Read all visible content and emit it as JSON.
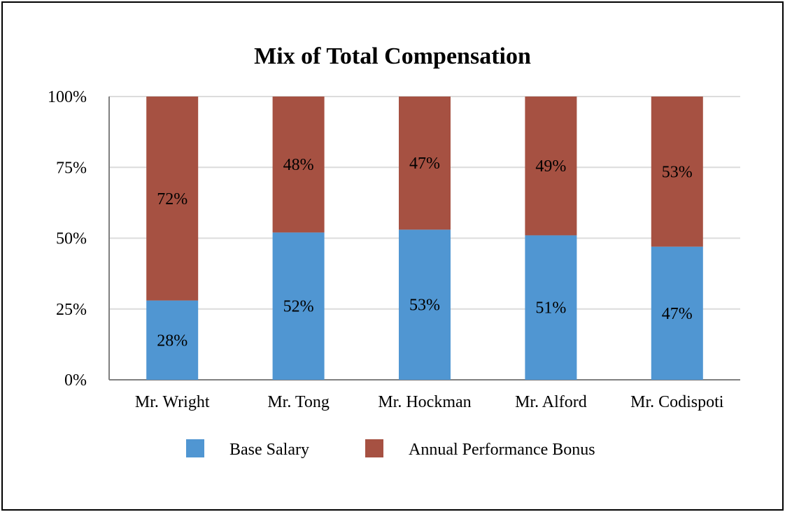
{
  "chart_data": {
    "type": "bar",
    "stacked": true,
    "percent_stacked": true,
    "title": "Mix of Total Compensation",
    "xlabel": "",
    "ylabel": "",
    "categories": [
      "Mr. Wright",
      "Mr. Tong",
      "Mr. Hockman",
      "Mr. Alford",
      "Mr. Codispoti"
    ],
    "series": [
      {
        "name": "Base Salary",
        "color": "#5096D2",
        "values": [
          28,
          52,
          53,
          51,
          47
        ],
        "labels": [
          "28%",
          "52%",
          "53%",
          "51%",
          "47%"
        ]
      },
      {
        "name": "Annual Performance Bonus",
        "color": "#A65142",
        "values": [
          72,
          48,
          47,
          49,
          53
        ],
        "labels": [
          "72%",
          "48%",
          "47%",
          "49%",
          "53%"
        ]
      }
    ],
    "ylim": [
      0,
      100
    ],
    "yticks": [
      {
        "value": 0,
        "label": "0%"
      },
      {
        "value": 25,
        "label": "25%"
      },
      {
        "value": 50,
        "label": "50%"
      },
      {
        "value": 75,
        "label": "75%"
      },
      {
        "value": 100,
        "label": "100%"
      }
    ],
    "grid": true,
    "legend_position": "bottom"
  }
}
